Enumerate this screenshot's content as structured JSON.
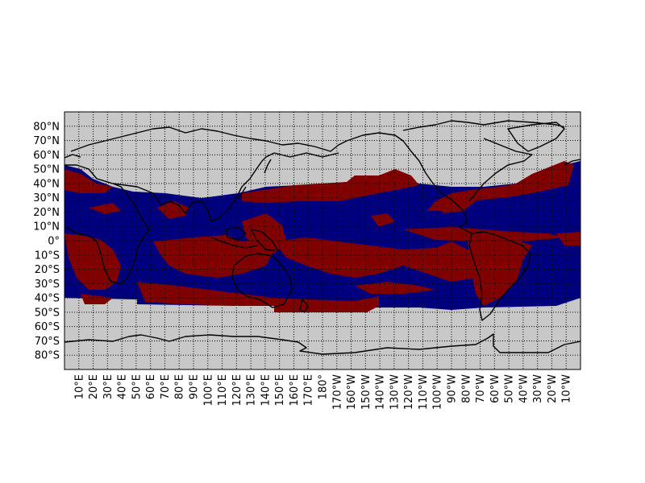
{
  "map": {
    "projection": "cylindrical",
    "lon_range": [
      0,
      360
    ],
    "lat_range": [
      -90,
      90
    ],
    "grid_lines": "dotted",
    "colors": {
      "ocean_class_a": "#00007f",
      "ocean_class_b": "#800000",
      "missing": "#c8c8c8",
      "coastline": "#000000"
    },
    "lat_labels": [
      "80°N",
      "70°N",
      "60°N",
      "50°N",
      "40°N",
      "30°N",
      "20°N",
      "10°N",
      "0°",
      "10°S",
      "20°S",
      "30°S",
      "40°S",
      "50°S",
      "60°S",
      "70°S",
      "80°S"
    ],
    "lat_values": [
      80,
      70,
      60,
      50,
      40,
      30,
      20,
      10,
      0,
      -10,
      -20,
      -30,
      -40,
      -50,
      -60,
      -70,
      -80
    ],
    "lon_labels": [
      "10°E",
      "20°E",
      "30°E",
      "40°E",
      "50°E",
      "60°E",
      "70°E",
      "80°E",
      "90°E",
      "100°E",
      "110°E",
      "120°E",
      "130°E",
      "140°E",
      "150°E",
      "160°E",
      "170°E",
      "180°",
      "170°W",
      "160°W",
      "150°W",
      "140°W",
      "130°W",
      "120°W",
      "110°W",
      "100°W",
      "90°W",
      "80°W",
      "70°W",
      "60°W",
      "50°W",
      "40°W",
      "30°W",
      "20°W",
      "10°W"
    ],
    "lon_values": [
      10,
      20,
      30,
      40,
      50,
      60,
      70,
      80,
      90,
      100,
      110,
      120,
      130,
      140,
      150,
      160,
      170,
      180,
      190,
      200,
      210,
      220,
      230,
      240,
      250,
      260,
      270,
      280,
      290,
      300,
      310,
      320,
      330,
      340,
      350
    ]
  }
}
